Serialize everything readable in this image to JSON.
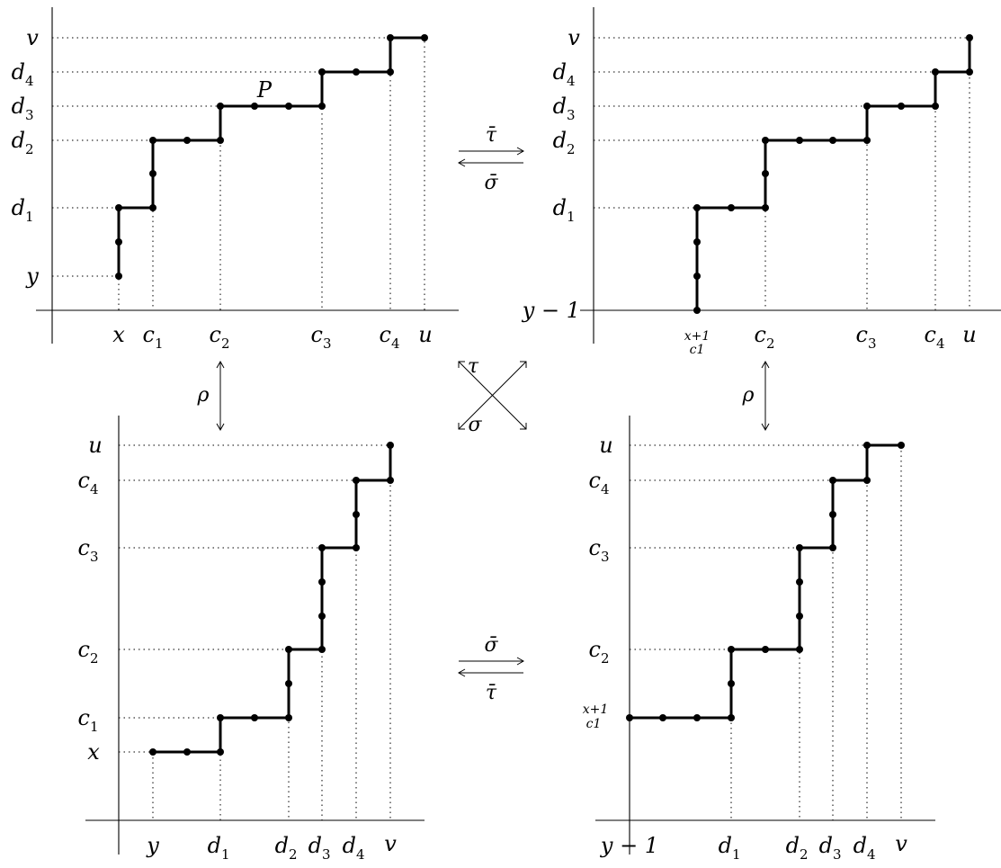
{
  "panels": [
    {
      "id": "top-left",
      "x_axis_labels": [
        {
          "text": "x",
          "sub": ""
        },
        {
          "text": "c",
          "sub": "1"
        },
        {
          "text": "c",
          "sub": "2"
        },
        {
          "text": "c",
          "sub": "3"
        },
        {
          "text": "c",
          "sub": "4"
        },
        {
          "text": "u",
          "sub": ""
        }
      ],
      "y_axis_labels": [
        {
          "text": "y",
          "sub": ""
        },
        {
          "text": "d",
          "sub": "1"
        },
        {
          "text": "d",
          "sub": "2"
        },
        {
          "text": "d",
          "sub": "3"
        },
        {
          "text": "d",
          "sub": "4"
        },
        {
          "text": "v",
          "sub": ""
        }
      ],
      "path_label": "P"
    },
    {
      "id": "top-right",
      "x_axis_labels": [
        {
          "text": "x+1",
          "sub": "",
          "stacked": "c1"
        },
        {
          "text": "c",
          "sub": "2"
        },
        {
          "text": "c",
          "sub": "3"
        },
        {
          "text": "c",
          "sub": "4"
        },
        {
          "text": "u",
          "sub": ""
        }
      ],
      "y_axis_labels": [
        {
          "text": "y − 1",
          "sub": ""
        },
        {
          "text": "d",
          "sub": "1"
        },
        {
          "text": "d",
          "sub": "2"
        },
        {
          "text": "d",
          "sub": "3"
        },
        {
          "text": "d",
          "sub": "4"
        },
        {
          "text": "v",
          "sub": ""
        }
      ]
    },
    {
      "id": "bottom-left",
      "x_axis_labels": [
        {
          "text": "y",
          "sub": ""
        },
        {
          "text": "d",
          "sub": "1"
        },
        {
          "text": "d",
          "sub": "2"
        },
        {
          "text": "d",
          "sub": "3"
        },
        {
          "text": "d",
          "sub": "4"
        },
        {
          "text": "v",
          "sub": ""
        }
      ],
      "y_axis_labels": [
        {
          "text": "x",
          "sub": ""
        },
        {
          "text": "c",
          "sub": "1"
        },
        {
          "text": "c",
          "sub": "2"
        },
        {
          "text": "c",
          "sub": "3"
        },
        {
          "text": "c",
          "sub": "4"
        },
        {
          "text": "u",
          "sub": ""
        }
      ]
    },
    {
      "id": "bottom-right",
      "x_axis_labels": [
        {
          "text": "y − 1",
          "sub": ""
        },
        {
          "text": "d",
          "sub": "1"
        },
        {
          "text": "d",
          "sub": "2"
        },
        {
          "text": "d",
          "sub": "3"
        },
        {
          "text": "d",
          "sub": "4"
        },
        {
          "text": "v",
          "sub": ""
        }
      ],
      "y_axis_labels": [
        {
          "text": "x+1",
          "sub": "",
          "stacked": "c1"
        },
        {
          "text": "c",
          "sub": "2"
        },
        {
          "text": "c",
          "sub": "3"
        },
        {
          "text": "c",
          "sub": "4"
        },
        {
          "text": "u",
          "sub": ""
        }
      ]
    }
  ],
  "arrows": {
    "top_right_map": "τ̄",
    "top_left_map": "σ̄",
    "bottom_right_map": "σ̄",
    "bottom_left_map": "τ̄",
    "left_vertical": "ρ",
    "right_vertical": "ρ",
    "cross_tau": "τ",
    "cross_sigma": "σ"
  }
}
